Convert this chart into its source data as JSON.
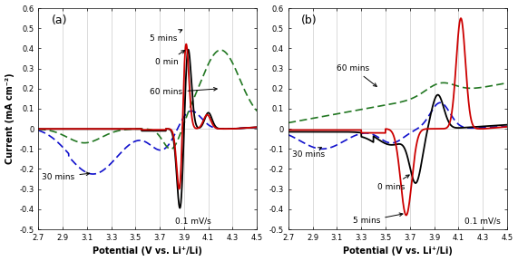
{
  "xlim": [
    2.7,
    4.5
  ],
  "ylim": [
    -0.5,
    0.6
  ],
  "xticks": [
    2.7,
    2.9,
    3.1,
    3.3,
    3.5,
    3.7,
    3.9,
    4.1,
    4.3,
    4.5
  ],
  "yticks": [
    -0.5,
    -0.4,
    -0.3,
    -0.2,
    -0.1,
    0.0,
    0.1,
    0.2,
    0.3,
    0.4,
    0.5,
    0.6
  ],
  "xlabel": "Potential (V vs. Li⁺/Li)",
  "ylabel": "Current (mA cm⁻²)",
  "scan_rate_label": "0.1 mV/s",
  "panel_a_label": "(a)",
  "panel_b_label": "(b)",
  "colors": {
    "0min": "#000000",
    "5min": "#cc0000",
    "30min": "#1010cc",
    "60min": "#227722"
  },
  "background": "#ffffff"
}
